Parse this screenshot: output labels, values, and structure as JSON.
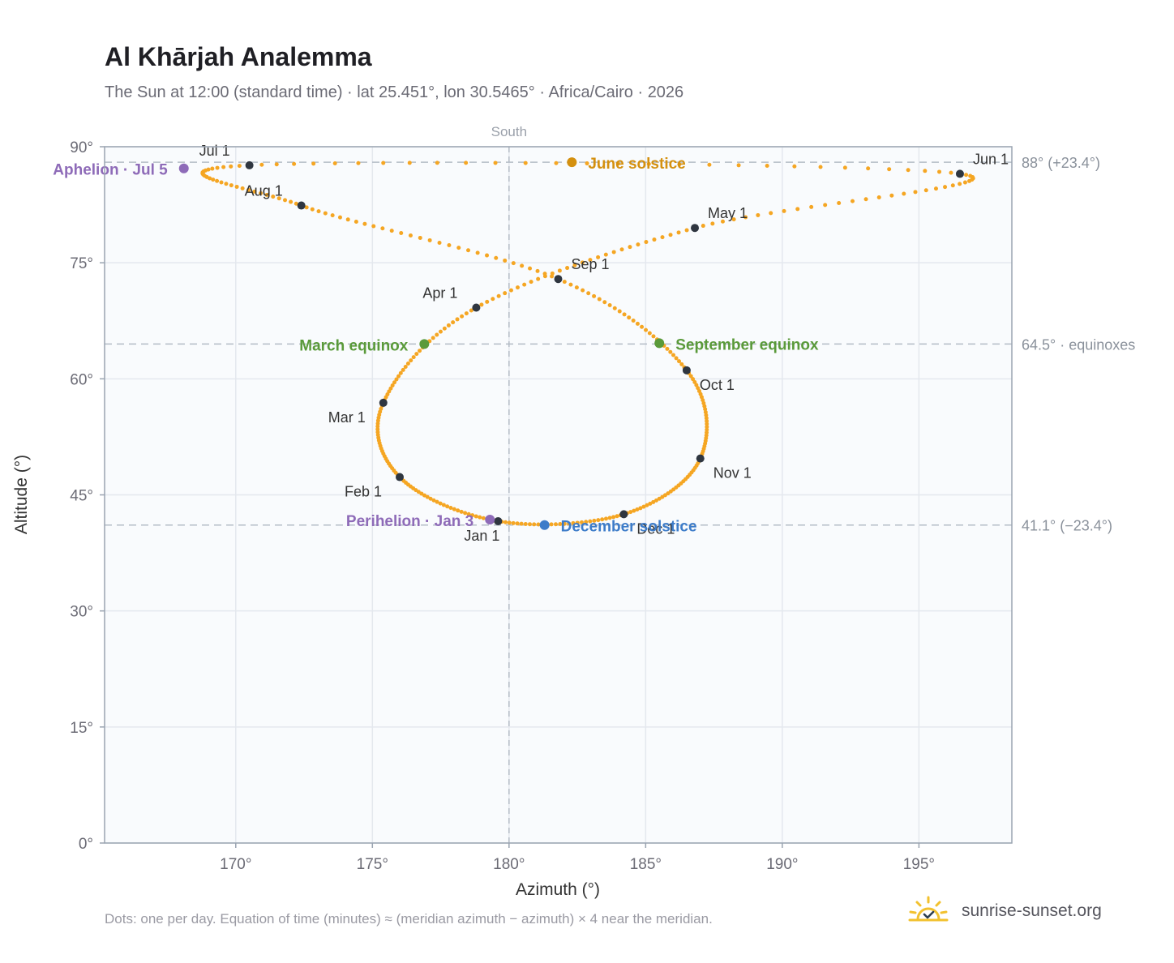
{
  "title": "Al Khārjah Analemma",
  "subtitle": "The Sun at 12:00 (standard time) · lat 25.451°, lon 30.5465° · Africa/Cairo · 2026",
  "footnote": "Dots: one per day. Equation of time (minutes) ≈ (meridian azimuth − azimuth) × 4 near the meridian.",
  "brand": {
    "name": "sunrise-sunset.org",
    "icon": "sun-logo-icon"
  },
  "colors": {
    "path": "#f5a623",
    "month_marker": "#2f3640",
    "june_solstice": "#d4900f",
    "december_solstice": "#3d7cc9",
    "equinox": "#5a9a3a",
    "apsis": "#8e6bb8",
    "reference_line": "#b4bcc6",
    "plot_bg": "#f9fbfd",
    "grid": "#e4e8ee",
    "frame": "#9aa4b1"
  },
  "chart_data": {
    "type": "scatter",
    "title": "Al Khārjah Analemma",
    "xlabel": "Azimuth (°)",
    "ylabel": "Altitude (°)",
    "xlim": [
      165.2,
      198.4
    ],
    "ylim": [
      0,
      90
    ],
    "x_ticks": [
      170,
      175,
      180,
      185,
      190,
      195
    ],
    "x_tick_labels": [
      "170°",
      "175°",
      "180°",
      "185°",
      "190°",
      "195°"
    ],
    "y_ticks": [
      0,
      15,
      30,
      45,
      60,
      75,
      90
    ],
    "y_tick_labels": [
      "0°",
      "15°",
      "30°",
      "45°",
      "60°",
      "75°",
      "90°"
    ],
    "grid": true,
    "meridian": {
      "azimuth": 180,
      "label": "South"
    },
    "reference_lines": [
      {
        "altitude": 88,
        "label": "88° (+23.4°)"
      },
      {
        "altitude": 64.5,
        "label": "64.5° · equinoxes"
      },
      {
        "altitude": 41.1,
        "label": "41.1° (−23.4°)"
      }
    ],
    "monthly_points": [
      {
        "label": "Jan 1",
        "azimuth": 179.6,
        "altitude": 41.6
      },
      {
        "label": "Feb 1",
        "azimuth": 176.0,
        "altitude": 47.3
      },
      {
        "label": "Mar 1",
        "azimuth": 175.4,
        "altitude": 56.9
      },
      {
        "label": "Apr 1",
        "azimuth": 178.8,
        "altitude": 69.2
      },
      {
        "label": "May 1",
        "azimuth": 186.8,
        "altitude": 79.5
      },
      {
        "label": "Jun 1",
        "azimuth": 196.5,
        "altitude": 86.5
      },
      {
        "label": "Jul 1",
        "azimuth": 170.5,
        "altitude": 87.6
      },
      {
        "label": "Aug 1",
        "azimuth": 172.4,
        "altitude": 82.4
      },
      {
        "label": "Sep 1",
        "azimuth": 181.8,
        "altitude": 72.9
      },
      {
        "label": "Oct 1",
        "azimuth": 186.5,
        "altitude": 61.1
      },
      {
        "label": "Nov 1",
        "azimuth": 187.0,
        "altitude": 49.7
      },
      {
        "label": "Dec 1",
        "azimuth": 184.2,
        "altitude": 42.5
      }
    ],
    "events": [
      {
        "label": "June solstice",
        "azimuth": 182.3,
        "altitude": 88.0,
        "color_key": "june_solstice"
      },
      {
        "label": "December solstice",
        "azimuth": 181.3,
        "altitude": 41.1,
        "color_key": "december_solstice"
      },
      {
        "label": "March equinox",
        "azimuth": 176.9,
        "altitude": 64.5,
        "color_key": "equinox"
      },
      {
        "label": "September equinox",
        "azimuth": 185.5,
        "altitude": 64.6,
        "color_key": "equinox"
      },
      {
        "label": "Aphelion · Jul 5",
        "azimuth": 168.1,
        "altitude": 87.2,
        "color_key": "apsis"
      },
      {
        "label": "Perihelion · Jan 3",
        "azimuth": 179.3,
        "altitude": 41.8,
        "color_key": "apsis"
      }
    ]
  }
}
